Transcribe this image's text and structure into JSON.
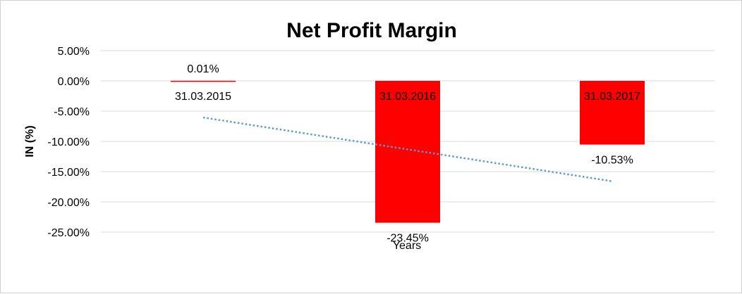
{
  "chart_data": {
    "type": "bar",
    "title": "Net Profit Margin",
    "ylabel": "IN (%)",
    "xlabel": "Years",
    "categories": [
      "31.03.2015",
      "31.03.2016",
      "31.03.2017"
    ],
    "series": [
      {
        "values": [
          0.01,
          -23.45,
          -10.53
        ]
      }
    ],
    "data_labels": [
      "0.01%",
      "-23.45%",
      "-10.53%"
    ],
    "ylim": [
      -25,
      5
    ],
    "yticks": [
      5,
      0,
      -5,
      -10,
      -15,
      -20,
      -25
    ],
    "ytick_labels": [
      "5.00%",
      "0.00%",
      "-5.00%",
      "-10.00%",
      "-15.00%",
      "-20.00%",
      "-25.00%"
    ],
    "grid": true,
    "trendline": {
      "type": "linear",
      "style": "dotted"
    },
    "colors": {
      "bar": "#ff0000",
      "trendline": "#5b9bd5",
      "grid": "#d9d9d9"
    }
  }
}
